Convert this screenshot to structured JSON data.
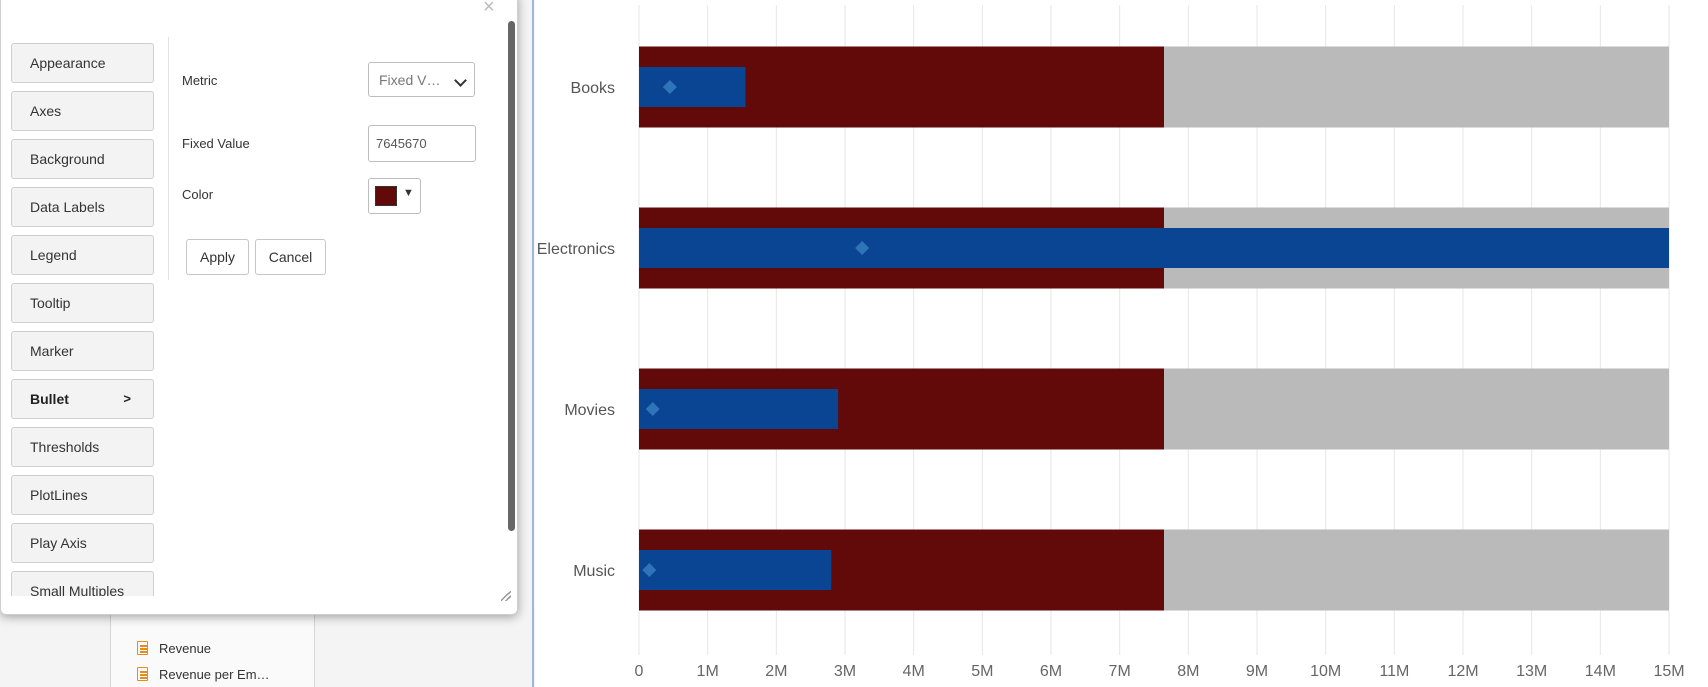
{
  "background": {
    "fields": [
      {
        "label": "Revenue",
        "icon": "table-icon"
      },
      {
        "label": "Revenue per Em…",
        "icon": "table-icon"
      }
    ]
  },
  "dialog": {
    "close_label": "×",
    "nav": [
      {
        "label": "Appearance"
      },
      {
        "label": "Axes"
      },
      {
        "label": "Background"
      },
      {
        "label": "Data Labels"
      },
      {
        "label": "Legend"
      },
      {
        "label": "Tooltip"
      },
      {
        "label": "Marker"
      },
      {
        "label": "Bullet",
        "active": true,
        "arrow": ">"
      },
      {
        "label": "Thresholds"
      },
      {
        "label": "PlotLines"
      },
      {
        "label": "Play Axis"
      },
      {
        "label": "Small Multiples"
      }
    ],
    "form": {
      "metric_label": "Metric",
      "metric_value": "Fixed V…",
      "fixed_value_label": "Fixed Value",
      "fixed_value": "7645670",
      "color_label": "Color",
      "color_value": "#620909",
      "apply_label": "Apply",
      "cancel_label": "Cancel"
    }
  },
  "chart_data": {
    "type": "bar",
    "orientation": "horizontal",
    "subtype": "bullet",
    "categories": [
      "Books",
      "Electronics",
      "Movies",
      "Music"
    ],
    "xlim": [
      0,
      15000000
    ],
    "x_ticks": [
      "0",
      "1M",
      "2M",
      "3M",
      "4M",
      "5M",
      "6M",
      "7M",
      "8M",
      "9M",
      "10M",
      "11M",
      "12M",
      "13M",
      "14M",
      "15M"
    ],
    "x_tick_values": [
      0,
      1000000,
      2000000,
      3000000,
      4000000,
      5000000,
      6000000,
      7000000,
      8000000,
      9000000,
      10000000,
      11000000,
      12000000,
      13000000,
      14000000,
      15000000
    ],
    "grid": true,
    "series": [
      {
        "values": [
          15000000,
          15000000,
          15000000,
          15000000
        ],
        "color": "#bababa"
      },
      {
        "values": [
          7645670,
          7645670,
          7645670,
          7645670
        ],
        "color": "#620909"
      },
      {
        "values": [
          1550000,
          15000000,
          2900000,
          2800000
        ],
        "color": "#0a4594"
      },
      {
        "values": [
          450000,
          3250000,
          200000,
          150000
        ],
        "color": "#2f74b8",
        "marker": "diamond"
      }
    ]
  },
  "colors": {
    "threshold": "#620909",
    "bar": "#0a4594",
    "target_marker": "#2f74b8",
    "range": "#bababa"
  }
}
